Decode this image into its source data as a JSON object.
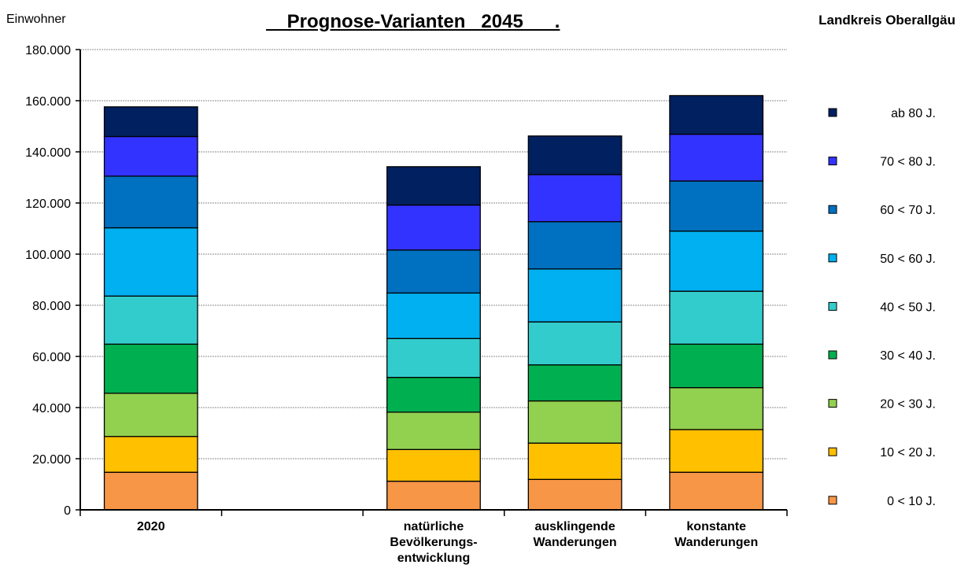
{
  "chart_data": {
    "type": "bar",
    "stacked": true,
    "title": "    Prognose-Varianten   2045      .",
    "region": "Landkreis Oberallgäu",
    "ylabel": "Einwohner",
    "ylim": [
      0,
      180000
    ],
    "yticks": [
      "0",
      "20.000",
      "40.000",
      "60.000",
      "80.000",
      "100.000",
      "120.000",
      "140.000",
      "160.000",
      "180.000"
    ],
    "grid": true,
    "legend_position": "right",
    "categories": [
      {
        "lines": [
          "2020"
        ]
      },
      {
        "lines": [
          ""
        ]
      },
      {
        "lines": [
          "natürliche",
          "Bevölkerungs-",
          "entwicklung"
        ]
      },
      {
        "lines": [
          "ausklingende",
          "Wanderungen"
        ]
      },
      {
        "lines": [
          "konstante",
          "Wanderungen"
        ]
      }
    ],
    "series": [
      {
        "name": "0 <  10  J.",
        "color": "#F79646",
        "values": [
          14700,
          null,
          11200,
          11900,
          14700
        ]
      },
      {
        "name": "10 <  20  J.",
        "color": "#FFC000",
        "values": [
          14000,
          null,
          12400,
          14200,
          16700
        ]
      },
      {
        "name": "20 <  30  J.",
        "color": "#92D050",
        "values": [
          16900,
          null,
          14600,
          16500,
          16400
        ]
      },
      {
        "name": "30 <  40  J.",
        "color": "#00B050",
        "values": [
          19200,
          null,
          13600,
          14100,
          17000
        ]
      },
      {
        "name": "40 <  50  J.",
        "color": "#33CCCC",
        "values": [
          18800,
          null,
          15200,
          16800,
          20700
        ]
      },
      {
        "name": "50 <  60  J.",
        "color": "#00B0F0",
        "values": [
          26700,
          null,
          17800,
          20700,
          23500
        ]
      },
      {
        "name": "60 <  70  J.",
        "color": "#0070C0",
        "values": [
          20200,
          null,
          16800,
          18500,
          19600
        ]
      },
      {
        "name": "70 <  80  J.",
        "color": "#3333FF",
        "values": [
          15500,
          null,
          17600,
          18400,
          18300
        ]
      },
      {
        "name": "ab 80  J.",
        "color": "#002060",
        "values": [
          11600,
          null,
          15000,
          15100,
          15100
        ]
      }
    ]
  }
}
